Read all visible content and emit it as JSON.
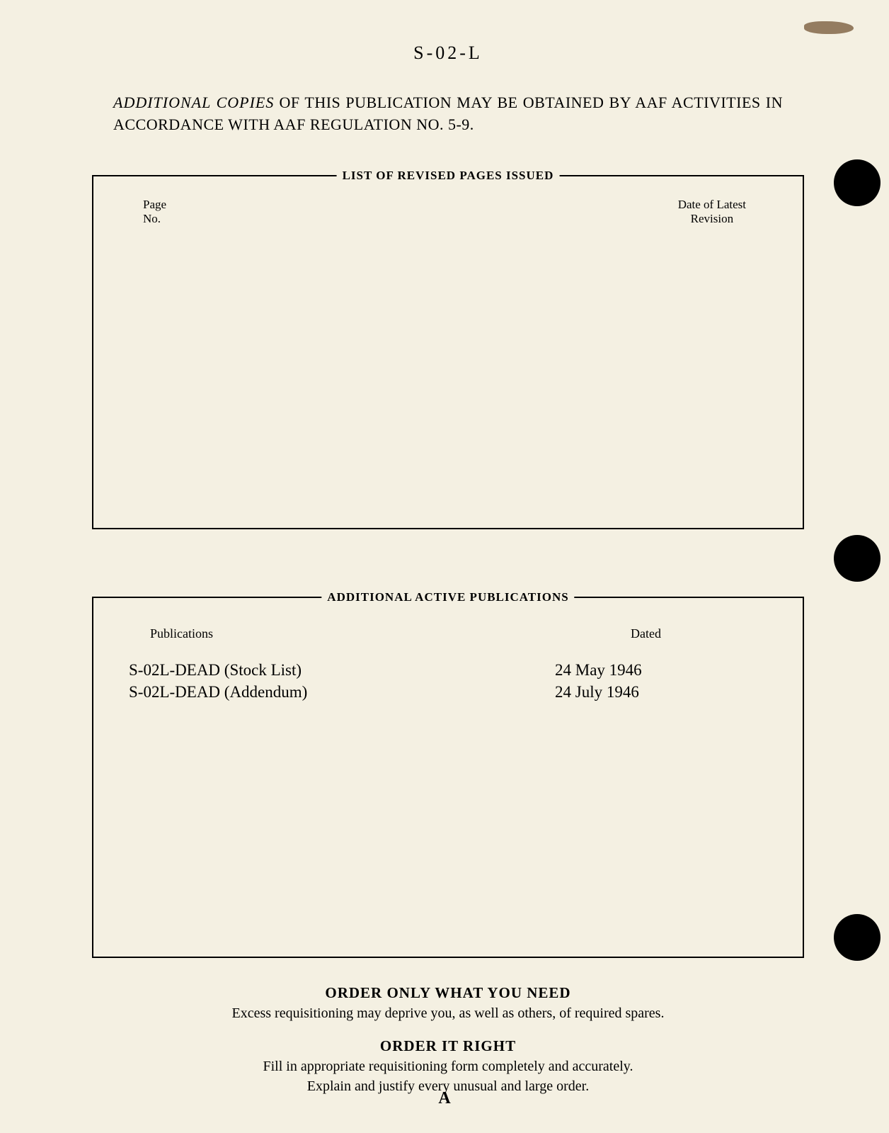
{
  "document_id": "S-02-L",
  "copies_notice": {
    "lead": "ADDITIONAL COPIES",
    "rest": " OF THIS PUBLICATION MAY BE OBTAINED BY AAF ACTIVITIES IN ACCORDANCE WITH AAF REGULATION NO. 5-9."
  },
  "revised_box": {
    "title": "LIST OF REVISED PAGES ISSUED",
    "page_no_label_line1": "Page",
    "page_no_label_line2": "No.",
    "date_label_line1": "Date of Latest",
    "date_label_line2": "Revision"
  },
  "publications_box": {
    "title": "ADDITIONAL ACTIVE PUBLICATIONS",
    "header_publications": "Publications",
    "header_dated": "Dated",
    "rows": [
      {
        "name": "S-02L-DEAD (Stock List)",
        "date": "24 May 1946"
      },
      {
        "name": "S-02L-DEAD (Addendum)",
        "date": "24 July 1946"
      }
    ]
  },
  "order_section": {
    "title1": "ORDER ONLY WHAT YOU NEED",
    "text1": "Excess requisitioning may deprive you, as well as others, of required spares.",
    "title2": "ORDER IT RIGHT",
    "text2a": "Fill in appropriate requisitioning form completely and accurately.",
    "text2b": "Explain and justify every unusual and large order."
  },
  "page_letter": "A"
}
